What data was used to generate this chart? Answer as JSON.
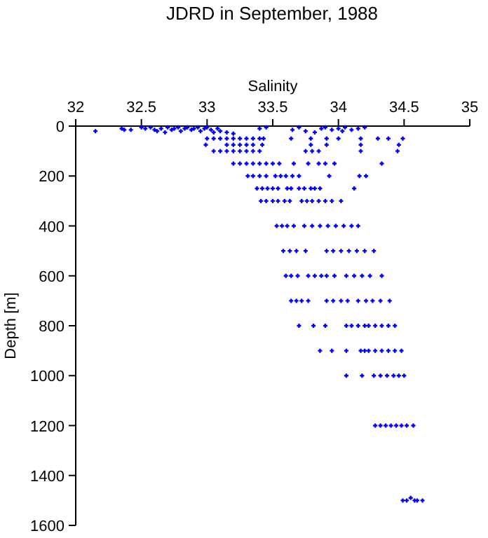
{
  "chart_data": {
    "type": "scatter",
    "title": "JDRD in September, 1988",
    "xlabel": "Salinity",
    "ylabel": "Depth [m]",
    "xlim": [
      32,
      35
    ],
    "xticks": [
      32,
      32.5,
      33,
      33.5,
      34,
      34.5,
      35
    ],
    "ylim": [
      1600,
      0
    ],
    "yticks": [
      0,
      200,
      400,
      600,
      800,
      1000,
      1200,
      1400,
      1600
    ],
    "marker": "cross",
    "series": [
      {
        "color": "#0000ff",
        "x": [
          32.15,
          32.35,
          32.37,
          32.42,
          32.5,
          32.53,
          32.57,
          32.6,
          32.62,
          32.65,
          32.68,
          32.7,
          32.73,
          32.75,
          32.78,
          32.8,
          32.83,
          32.85,
          32.88,
          32.9,
          32.93,
          32.95,
          32.98,
          33.0,
          33.03,
          33.05,
          33.08,
          33.1,
          33.15,
          33.2,
          33.4,
          33.45,
          33.65,
          33.7,
          33.75,
          33.82,
          33.87,
          33.9,
          33.95,
          34.0,
          34.03,
          34.05,
          34.1,
          34.15,
          34.2,
          33.0,
          33.05,
          33.1,
          33.15,
          33.2,
          33.25,
          33.3,
          33.35,
          33.4,
          33.43,
          33.64,
          33.79,
          33.91,
          34.0,
          34.17,
          34.3,
          34.38,
          34.49,
          32.99,
          33.15,
          33.2,
          33.25,
          33.3,
          33.35,
          33.42,
          33.79,
          33.91,
          34.17,
          34.46,
          33.05,
          33.1,
          33.15,
          33.2,
          33.25,
          33.3,
          33.35,
          33.4,
          33.75,
          33.8,
          33.85,
          34.17,
          34.45,
          33.2,
          33.25,
          33.3,
          33.35,
          33.4,
          33.45,
          33.5,
          33.55,
          33.66,
          33.77,
          33.85,
          33.9,
          33.97,
          34.33,
          33.31,
          33.35,
          33.4,
          33.45,
          33.52,
          33.56,
          33.6,
          33.65,
          33.7,
          33.93,
          34.16,
          34.21,
          33.38,
          33.42,
          33.46,
          33.5,
          33.54,
          33.61,
          33.64,
          33.7,
          33.74,
          33.79,
          33.82,
          33.86,
          34.12,
          33.41,
          33.45,
          33.5,
          33.54,
          33.59,
          33.63,
          33.72,
          33.76,
          33.8,
          33.85,
          33.9,
          33.95,
          34.02,
          33.53,
          33.57,
          33.61,
          33.66,
          33.74,
          33.8,
          33.86,
          33.92,
          33.98,
          34.04,
          34.1,
          34.15,
          33.58,
          33.63,
          33.68,
          33.75,
          33.91,
          33.96,
          34.02,
          34.08,
          34.14,
          34.2,
          34.27,
          33.6,
          33.64,
          33.69,
          33.77,
          33.82,
          33.87,
          33.91,
          33.97,
          34.06,
          34.12,
          34.18,
          34.24,
          34.33,
          33.64,
          33.68,
          33.72,
          33.77,
          33.91,
          33.96,
          34.02,
          34.07,
          34.15,
          34.21,
          34.26,
          34.32,
          34.39,
          33.7,
          33.81,
          33.9,
          34.06,
          34.1,
          34.15,
          34.2,
          34.23,
          34.28,
          34.33,
          34.38,
          34.43,
          33.86,
          33.95,
          34.06,
          34.17,
          34.2,
          34.23,
          34.28,
          34.33,
          34.38,
          34.43,
          34.48,
          34.06,
          34.18,
          34.27,
          34.32,
          34.37,
          34.42,
          34.46,
          34.5,
          34.28,
          34.32,
          34.36,
          34.4,
          34.44,
          34.48,
          34.52,
          34.57,
          34.49,
          34.52,
          34.55,
          34.58,
          34.6,
          34.64
        ],
        "values": [
          20,
          10,
          15,
          15,
          5,
          10,
          5,
          15,
          20,
          10,
          25,
          5,
          15,
          10,
          5,
          20,
          10,
          5,
          15,
          10,
          5,
          20,
          10,
          5,
          15,
          25,
          10,
          20,
          25,
          30,
          10,
          5,
          15,
          5,
          20,
          25,
          10,
          5,
          15,
          10,
          20,
          5,
          15,
          10,
          5,
          50,
          50,
          50,
          50,
          50,
          50,
          50,
          50,
          50,
          50,
          50,
          50,
          50,
          50,
          50,
          50,
          50,
          50,
          75,
          75,
          75,
          75,
          75,
          75,
          75,
          75,
          75,
          75,
          75,
          100,
          100,
          100,
          100,
          100,
          100,
          100,
          100,
          100,
          100,
          100,
          100,
          100,
          150,
          150,
          150,
          150,
          150,
          150,
          150,
          150,
          150,
          150,
          150,
          150,
          150,
          150,
          200,
          200,
          200,
          200,
          200,
          200,
          200,
          200,
          200,
          200,
          200,
          200,
          250,
          250,
          250,
          250,
          250,
          250,
          250,
          250,
          250,
          250,
          250,
          250,
          250,
          300,
          300,
          300,
          300,
          300,
          300,
          300,
          300,
          300,
          300,
          300,
          300,
          300,
          400,
          400,
          400,
          400,
          400,
          400,
          400,
          400,
          400,
          400,
          400,
          400,
          500,
          500,
          500,
          500,
          500,
          500,
          500,
          500,
          500,
          500,
          500,
          600,
          600,
          600,
          600,
          600,
          600,
          600,
          600,
          600,
          600,
          600,
          600,
          600,
          700,
          700,
          700,
          700,
          700,
          700,
          700,
          700,
          700,
          700,
          700,
          700,
          700,
          800,
          800,
          800,
          800,
          800,
          800,
          800,
          800,
          800,
          800,
          800,
          800,
          900,
          900,
          900,
          900,
          900,
          900,
          900,
          900,
          900,
          900,
          900,
          1000,
          1000,
          1000,
          1000,
          1000,
          1000,
          1000,
          1000,
          1200,
          1200,
          1200,
          1200,
          1200,
          1200,
          1200,
          1200,
          1500,
          1500,
          1490,
          1500,
          1500,
          1500
        ]
      }
    ]
  }
}
